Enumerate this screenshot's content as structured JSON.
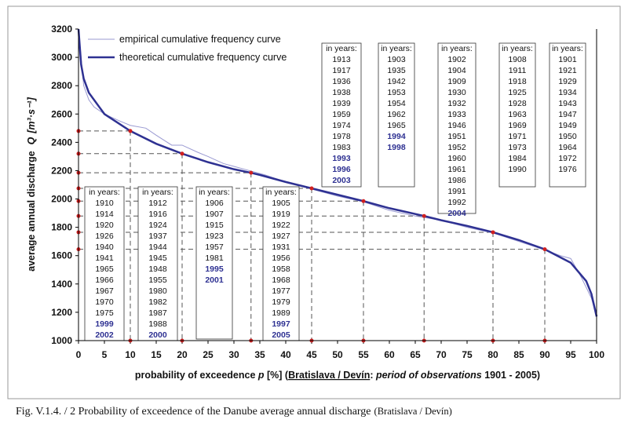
{
  "chart_data": {
    "type": "line",
    "caption": "Fig. V.1.4. / 2  Probability of exceedence of the Danube average annual discharge",
    "caption_note": "(Bratislava / Devín)",
    "x_label_parts": [
      "probability of exceedence ",
      "p",
      " [%] (",
      "Bratislava / Devín",
      ": ",
      "period of observations",
      " 1901 - 2005)"
    ],
    "y_label": "average annual discharge",
    "y_label_symbol": "Q",
    "y_label_unit": "[m³·s⁻¹]",
    "xlim": [
      0,
      100
    ],
    "ylim": [
      1000,
      3200
    ],
    "xticks": [
      0,
      5,
      10,
      15,
      20,
      25,
      30,
      35,
      40,
      45,
      50,
      55,
      60,
      65,
      70,
      75,
      80,
      85,
      90,
      95,
      100
    ],
    "yticks": [
      1000,
      1200,
      1400,
      1600,
      1800,
      2000,
      2200,
      2400,
      2600,
      2800,
      3000,
      3200
    ],
    "series": [
      {
        "name": "empirical cumulative frequency curve",
        "color": "#9a9ad2",
        "x": [
          0,
          1,
          2,
          3,
          5,
          8,
          10,
          13,
          15,
          18,
          20,
          23,
          25,
          28,
          30,
          33,
          36,
          40,
          45,
          50,
          55,
          60,
          65,
          70,
          75,
          80,
          85,
          90,
          93,
          95,
          97,
          99,
          100
        ],
        "values": [
          3200,
          2800,
          2700,
          2650,
          2600,
          2550,
          2520,
          2500,
          2450,
          2380,
          2380,
          2330,
          2300,
          2250,
          2230,
          2200,
          2170,
          2120,
          2070,
          2020,
          1980,
          1920,
          1880,
          1850,
          1800,
          1760,
          1700,
          1640,
          1600,
          1580,
          1450,
          1300,
          1170
        ]
      },
      {
        "name": "theoretical cumulative frequency curve",
        "color": "#2e3192",
        "x": [
          0,
          0.5,
          1,
          2,
          5,
          10,
          15,
          20,
          25,
          30,
          33.3,
          35,
          40,
          45,
          50,
          55,
          60,
          66.7,
          70,
          75,
          80,
          85,
          90,
          95,
          98,
          99,
          100
        ],
        "values": [
          3200,
          2950,
          2850,
          2750,
          2600,
          2480,
          2390,
          2320,
          2260,
          2210,
          2185,
          2170,
          2120,
          2075,
          2030,
          1985,
          1935,
          1880,
          1850,
          1810,
          1765,
          1710,
          1645,
          1550,
          1420,
          1330,
          1170
        ]
      }
    ],
    "reference_points": [
      {
        "x": 10,
        "y": 2480
      },
      {
        "x": 20,
        "y": 2320
      },
      {
        "x": 33.3,
        "y": 2185
      },
      {
        "x": 45,
        "y": 2075
      },
      {
        "x": 55,
        "y": 1985
      },
      {
        "x": 66.7,
        "y": 1880
      },
      {
        "x": 80,
        "y": 1765
      },
      {
        "x": 90,
        "y": 1645
      }
    ],
    "year_boxes": [
      {
        "label": "in years:",
        "years": [
          "1913",
          "1917",
          "1936",
          "1938",
          "1939",
          "1959",
          "1974",
          "1978",
          "1983"
        ],
        "recent": [
          "1993",
          "1996",
          "2003"
        ]
      },
      {
        "label": "in years:",
        "years": [
          "1903",
          "1935",
          "1942",
          "1953",
          "1954",
          "1962",
          "1965"
        ],
        "recent": [
          "1994",
          "1998"
        ]
      },
      {
        "label": "in years:",
        "years": [
          "1902",
          "1904",
          "1909",
          "1930",
          "1932",
          "1933",
          "1946",
          "1951",
          "1952",
          "1960",
          "1961",
          "1986",
          "1991",
          "1992"
        ],
        "recent": [
          "2004"
        ]
      },
      {
        "label": "in years:",
        "years": [
          "1908",
          "1911",
          "1918",
          "1925",
          "1928",
          "1963",
          "1969",
          "1971",
          "1973",
          "1984",
          "1990"
        ],
        "recent": []
      },
      {
        "label": "in years:",
        "years": [
          "1901",
          "1921",
          "1929",
          "1934",
          "1943",
          "1947",
          "1949",
          "1950",
          "1964",
          "1972",
          "1976"
        ],
        "recent": []
      },
      {
        "label": "in years:",
        "years": [
          "1910",
          "1914",
          "1920",
          "1926",
          "1940",
          "1941",
          "1965",
          "1966",
          "1967",
          "1970",
          "1975"
        ],
        "recent": [
          "1999",
          "2002"
        ]
      },
      {
        "label": "in years:",
        "years": [
          "1912",
          "1916",
          "1924",
          "1937",
          "1944",
          "1945",
          "1948",
          "1955",
          "1980",
          "1982",
          "1987",
          "1988"
        ],
        "recent": [
          "2000"
        ]
      },
      {
        "label": "in years:",
        "years": [
          "1906",
          "1907",
          "1915",
          "1923",
          "1957",
          "1981"
        ],
        "recent": [
          "1995",
          "2001"
        ]
      },
      {
        "label": "in years:",
        "years": [
          "1905",
          "1919",
          "1922",
          "1927",
          "1931",
          "1956",
          "1958",
          "1968",
          "1977",
          "1979",
          "1989"
        ],
        "recent": [
          "1997",
          "2005"
        ]
      }
    ]
  }
}
